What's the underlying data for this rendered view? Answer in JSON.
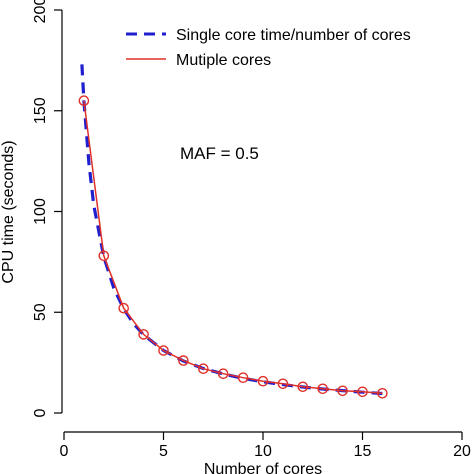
{
  "chart_data": {
    "type": "line",
    "xlabel": "Number of cores",
    "ylabel": "CPU time (seconds)",
    "xlim": [
      0,
      20
    ],
    "ylim": [
      0,
      200
    ],
    "x_ticks": [
      0,
      5,
      10,
      15,
      20
    ],
    "y_ticks": [
      0,
      50,
      100,
      150,
      200
    ],
    "annotation": "MAF = 0.5",
    "legend_position": "top-right",
    "series": [
      {
        "name": "Single core time/number of cores",
        "style": "dashed",
        "color": "#1f1fd0",
        "x": [
          0.9,
          1,
          1.25,
          1.5,
          2,
          2.5,
          3,
          3.5,
          4,
          5,
          6,
          7,
          8,
          9,
          10,
          11,
          12,
          13,
          14,
          15,
          16
        ],
        "y": [
          173,
          155,
          124,
          103,
          77.5,
          62,
          51.7,
          44.3,
          38.8,
          31,
          25.8,
          22.1,
          19.4,
          17.2,
          15.5,
          14.1,
          12.9,
          11.9,
          11.1,
          10.3,
          9.7
        ]
      },
      {
        "name": "Mutiple cores",
        "style": "solid-with-circles",
        "color": "#e0302a",
        "x": [
          1,
          2,
          3,
          4,
          5,
          6,
          7,
          8,
          9,
          10,
          11,
          12,
          13,
          14,
          15,
          16
        ],
        "y": [
          155,
          78,
          52,
          39,
          31,
          26,
          22,
          19.5,
          17.5,
          15.8,
          14.5,
          13,
          12,
          11,
          10.5,
          9.8
        ]
      }
    ]
  }
}
